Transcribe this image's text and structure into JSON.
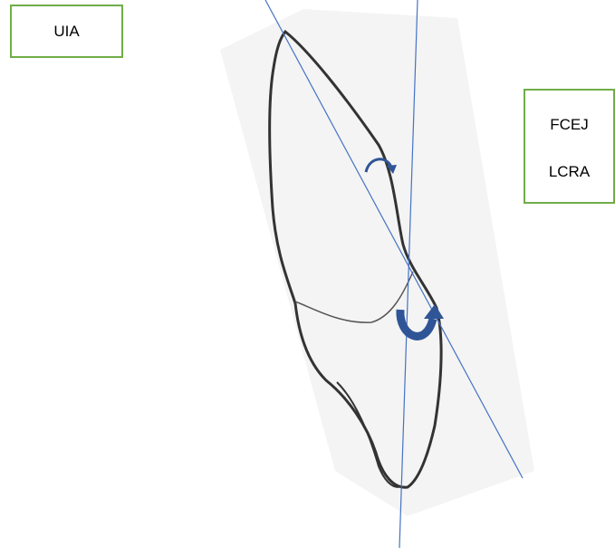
{
  "labels": {
    "uia": "UIA",
    "fcej": "FCEJ",
    "lcra": "LCRA"
  }
}
